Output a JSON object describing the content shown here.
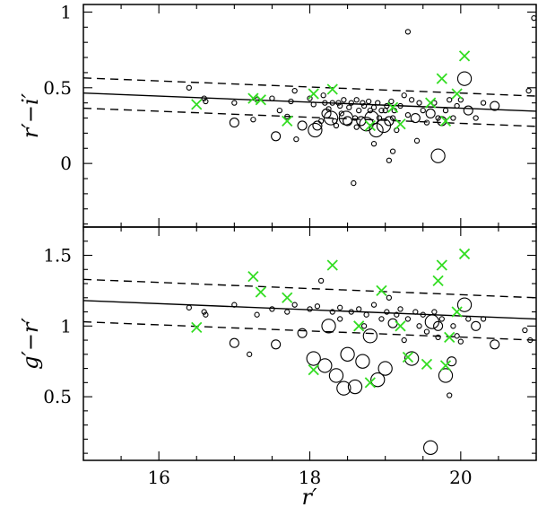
{
  "chart_data": [
    {
      "type": "scatter",
      "panel": "top",
      "xlabel": "",
      "ylabel": "r′−i′",
      "xlim": [
        15.0,
        21.0
      ],
      "ylim": [
        -0.42,
        1.05
      ],
      "yticks": [
        0,
        0.5,
        1
      ],
      "yticklabels": [
        "0",
        "0.5",
        "1"
      ],
      "fit_line": {
        "x": [
          15.0,
          21.0
        ],
        "y": [
          0.465,
          0.345
        ]
      },
      "dashed_bounds": [
        {
          "x": [
            15.0,
            21.0
          ],
          "y": [
            0.565,
            0.445
          ]
        },
        {
          "x": [
            15.0,
            21.0
          ],
          "y": [
            0.365,
            0.245
          ]
        }
      ],
      "circles": [
        {
          "x": 16.4,
          "y": 0.5,
          "s": 1
        },
        {
          "x": 16.6,
          "y": 0.43,
          "s": 1
        },
        {
          "x": 16.62,
          "y": 0.41,
          "s": 1
        },
        {
          "x": 17.0,
          "y": 0.27,
          "s": 2
        },
        {
          "x": 17.0,
          "y": 0.4,
          "s": 1
        },
        {
          "x": 17.25,
          "y": 0.29,
          "s": 1
        },
        {
          "x": 17.3,
          "y": 0.42,
          "s": 1
        },
        {
          "x": 17.5,
          "y": 0.43,
          "s": 1
        },
        {
          "x": 17.55,
          "y": 0.18,
          "s": 2
        },
        {
          "x": 17.6,
          "y": 0.35,
          "s": 1
        },
        {
          "x": 17.7,
          "y": 0.31,
          "s": 1
        },
        {
          "x": 17.75,
          "y": 0.41,
          "s": 1
        },
        {
          "x": 17.8,
          "y": 0.48,
          "s": 1
        },
        {
          "x": 17.82,
          "y": 0.16,
          "s": 1
        },
        {
          "x": 17.9,
          "y": 0.25,
          "s": 2
        },
        {
          "x": 18.0,
          "y": 0.43,
          "s": 1
        },
        {
          "x": 18.05,
          "y": 0.39,
          "s": 1
        },
        {
          "x": 18.07,
          "y": 0.22,
          "s": 3
        },
        {
          "x": 18.1,
          "y": 0.25,
          "s": 2
        },
        {
          "x": 18.15,
          "y": 0.28,
          "s": 1
        },
        {
          "x": 18.18,
          "y": 0.45,
          "s": 1
        },
        {
          "x": 18.2,
          "y": 0.4,
          "s": 1
        },
        {
          "x": 18.22,
          "y": 0.33,
          "s": 2
        },
        {
          "x": 18.25,
          "y": 0.36,
          "s": 1
        },
        {
          "x": 18.28,
          "y": 0.3,
          "s": 3
        },
        {
          "x": 18.3,
          "y": 0.4,
          "s": 1
        },
        {
          "x": 18.33,
          "y": 0.28,
          "s": 1
        },
        {
          "x": 18.35,
          "y": 0.25,
          "s": 1
        },
        {
          "x": 18.38,
          "y": 0.4,
          "s": 1
        },
        {
          "x": 18.4,
          "y": 0.38,
          "s": 1
        },
        {
          "x": 18.42,
          "y": 0.33,
          "s": 1
        },
        {
          "x": 18.45,
          "y": 0.42,
          "s": 1
        },
        {
          "x": 18.48,
          "y": 0.3,
          "s": 3
        },
        {
          "x": 18.5,
          "y": 0.28,
          "s": 2
        },
        {
          "x": 18.52,
          "y": 0.37,
          "s": 1
        },
        {
          "x": 18.55,
          "y": 0.4,
          "s": 1
        },
        {
          "x": 18.58,
          "y": -0.13,
          "s": 1
        },
        {
          "x": 18.6,
          "y": 0.3,
          "s": 1
        },
        {
          "x": 18.62,
          "y": 0.42,
          "s": 1
        },
        {
          "x": 18.65,
          "y": 0.35,
          "s": 1
        },
        {
          "x": 18.68,
          "y": 0.28,
          "s": 2
        },
        {
          "x": 18.7,
          "y": 0.4,
          "s": 1
        },
        {
          "x": 18.72,
          "y": 0.38,
          "s": 1
        },
        {
          "x": 18.75,
          "y": 0.26,
          "s": 3
        },
        {
          "x": 18.78,
          "y": 0.41,
          "s": 1
        },
        {
          "x": 18.8,
          "y": 0.35,
          "s": 1
        },
        {
          "x": 18.82,
          "y": 0.3,
          "s": 3
        },
        {
          "x": 18.85,
          "y": 0.37,
          "s": 1
        },
        {
          "x": 18.88,
          "y": 0.22,
          "s": 3
        },
        {
          "x": 18.9,
          "y": 0.4,
          "s": 1
        },
        {
          "x": 18.92,
          "y": 0.3,
          "s": 1
        },
        {
          "x": 18.95,
          "y": 0.35,
          "s": 1
        },
        {
          "x": 18.98,
          "y": 0.25,
          "s": 3
        },
        {
          "x": 19.0,
          "y": 0.35,
          "s": 1
        },
        {
          "x": 19.02,
          "y": 0.38,
          "s": 1
        },
        {
          "x": 19.05,
          "y": 0.28,
          "s": 2
        },
        {
          "x": 19.08,
          "y": 0.41,
          "s": 1
        },
        {
          "x": 19.1,
          "y": 0.3,
          "s": 1
        },
        {
          "x": 19.12,
          "y": 0.35,
          "s": 1
        },
        {
          "x": 19.15,
          "y": 0.22,
          "s": 1
        },
        {
          "x": 19.2,
          "y": 0.38,
          "s": 1
        },
        {
          "x": 19.25,
          "y": 0.45,
          "s": 1
        },
        {
          "x": 19.3,
          "y": 0.87,
          "s": 1
        },
        {
          "x": 19.3,
          "y": 0.32,
          "s": 1
        },
        {
          "x": 19.35,
          "y": 0.42,
          "s": 1
        },
        {
          "x": 19.4,
          "y": 0.3,
          "s": 2
        },
        {
          "x": 19.42,
          "y": 0.15,
          "s": 1
        },
        {
          "x": 19.45,
          "y": 0.4,
          "s": 1
        },
        {
          "x": 19.5,
          "y": 0.35,
          "s": 1
        },
        {
          "x": 19.55,
          "y": 0.27,
          "s": 1
        },
        {
          "x": 19.6,
          "y": 0.33,
          "s": 2
        },
        {
          "x": 19.65,
          "y": 0.4,
          "s": 1
        },
        {
          "x": 19.7,
          "y": 0.3,
          "s": 1
        },
        {
          "x": 19.75,
          "y": 0.28,
          "s": 2
        },
        {
          "x": 19.8,
          "y": 0.35,
          "s": 1
        },
        {
          "x": 19.85,
          "y": 0.42,
          "s": 1
        },
        {
          "x": 19.9,
          "y": 0.3,
          "s": 1
        },
        {
          "x": 19.95,
          "y": 0.38,
          "s": 1
        },
        {
          "x": 20.0,
          "y": 0.42,
          "s": 1
        },
        {
          "x": 20.05,
          "y": 0.56,
          "s": 3
        },
        {
          "x": 20.1,
          "y": 0.35,
          "s": 2
        },
        {
          "x": 20.2,
          "y": 0.3,
          "s": 1
        },
        {
          "x": 20.3,
          "y": 0.4,
          "s": 1
        },
        {
          "x": 20.45,
          "y": 0.38,
          "s": 2
        },
        {
          "x": 20.9,
          "y": 0.48,
          "s": 1
        },
        {
          "x": 20.97,
          "y": 0.96,
          "s": 1
        },
        {
          "x": 18.62,
          "y": 0.24,
          "s": 1
        },
        {
          "x": 18.85,
          "y": 0.13,
          "s": 1
        },
        {
          "x": 19.7,
          "y": 0.05,
          "s": 3
        },
        {
          "x": 19.05,
          "y": 0.02,
          "s": 1
        },
        {
          "x": 19.1,
          "y": 0.08,
          "s": 1
        }
      ],
      "crosses": [
        {
          "x": 16.5,
          "y": 0.39
        },
        {
          "x": 17.25,
          "y": 0.43
        },
        {
          "x": 17.35,
          "y": 0.42
        },
        {
          "x": 17.7,
          "y": 0.28
        },
        {
          "x": 18.05,
          "y": 0.46
        },
        {
          "x": 18.3,
          "y": 0.49
        },
        {
          "x": 18.8,
          "y": 0.25
        },
        {
          "x": 19.1,
          "y": 0.37
        },
        {
          "x": 19.2,
          "y": 0.26
        },
        {
          "x": 19.6,
          "y": 0.4
        },
        {
          "x": 19.75,
          "y": 0.56
        },
        {
          "x": 19.95,
          "y": 0.46
        },
        {
          "x": 20.05,
          "y": 0.71
        },
        {
          "x": 19.8,
          "y": 0.28
        }
      ]
    },
    {
      "type": "scatter",
      "panel": "bottom",
      "xlabel": "r′",
      "ylabel": "g′−r′",
      "xlim": [
        15.0,
        21.0
      ],
      "ylim": [
        0.05,
        1.7
      ],
      "xticks": [
        16,
        18,
        20
      ],
      "xticklabels": [
        "16",
        "18",
        "20"
      ],
      "yticks": [
        0.5,
        1,
        1.5
      ],
      "yticklabels": [
        "0.5",
        "1",
        "1.5"
      ],
      "fit_line": {
        "x": [
          15.0,
          21.0
        ],
        "y": [
          1.18,
          1.05
        ]
      },
      "dashed_bounds": [
        {
          "x": [
            15.0,
            21.0
          ],
          "y": [
            1.33,
            1.2
          ]
        },
        {
          "x": [
            15.0,
            21.0
          ],
          "y": [
            1.03,
            0.9
          ]
        }
      ],
      "circles": [
        {
          "x": 16.4,
          "y": 1.13,
          "s": 1
        },
        {
          "x": 16.6,
          "y": 1.1,
          "s": 1
        },
        {
          "x": 16.62,
          "y": 1.08,
          "s": 1
        },
        {
          "x": 17.0,
          "y": 0.88,
          "s": 2
        },
        {
          "x": 17.0,
          "y": 1.15,
          "s": 1
        },
        {
          "x": 17.2,
          "y": 0.8,
          "s": 1
        },
        {
          "x": 17.3,
          "y": 1.08,
          "s": 1
        },
        {
          "x": 17.5,
          "y": 1.12,
          "s": 1
        },
        {
          "x": 17.55,
          "y": 0.87,
          "s": 2
        },
        {
          "x": 17.7,
          "y": 1.1,
          "s": 1
        },
        {
          "x": 17.8,
          "y": 1.15,
          "s": 1
        },
        {
          "x": 17.9,
          "y": 0.95,
          "s": 2
        },
        {
          "x": 18.0,
          "y": 1.12,
          "s": 1
        },
        {
          "x": 18.05,
          "y": 0.77,
          "s": 3
        },
        {
          "x": 18.1,
          "y": 1.14,
          "s": 1
        },
        {
          "x": 18.15,
          "y": 1.32,
          "s": 1
        },
        {
          "x": 18.2,
          "y": 0.72,
          "s": 3
        },
        {
          "x": 18.25,
          "y": 1.0,
          "s": 3
        },
        {
          "x": 18.3,
          "y": 1.1,
          "s": 1
        },
        {
          "x": 18.35,
          "y": 0.65,
          "s": 3
        },
        {
          "x": 18.4,
          "y": 1.05,
          "s": 1
        },
        {
          "x": 18.45,
          "y": 0.56,
          "s": 3
        },
        {
          "x": 18.5,
          "y": 0.8,
          "s": 3
        },
        {
          "x": 18.55,
          "y": 1.1,
          "s": 1
        },
        {
          "x": 18.6,
          "y": 0.57,
          "s": 3
        },
        {
          "x": 18.65,
          "y": 1.12,
          "s": 1
        },
        {
          "x": 18.7,
          "y": 0.75,
          "s": 3
        },
        {
          "x": 18.72,
          "y": 1.0,
          "s": 1
        },
        {
          "x": 18.75,
          "y": 1.08,
          "s": 1
        },
        {
          "x": 18.8,
          "y": 0.93,
          "s": 3
        },
        {
          "x": 18.85,
          "y": 1.15,
          "s": 1
        },
        {
          "x": 18.9,
          "y": 0.62,
          "s": 3
        },
        {
          "x": 18.95,
          "y": 1.05,
          "s": 1
        },
        {
          "x": 19.0,
          "y": 0.7,
          "s": 3
        },
        {
          "x": 19.02,
          "y": 1.1,
          "s": 1
        },
        {
          "x": 19.05,
          "y": 1.2,
          "s": 1
        },
        {
          "x": 19.1,
          "y": 1.02,
          "s": 2
        },
        {
          "x": 19.15,
          "y": 1.08,
          "s": 1
        },
        {
          "x": 19.2,
          "y": 1.12,
          "s": 1
        },
        {
          "x": 19.25,
          "y": 0.9,
          "s": 1
        },
        {
          "x": 19.3,
          "y": 1.05,
          "s": 1
        },
        {
          "x": 19.35,
          "y": 0.77,
          "s": 3
        },
        {
          "x": 19.4,
          "y": 1.1,
          "s": 1
        },
        {
          "x": 19.45,
          "y": 1.0,
          "s": 1
        },
        {
          "x": 19.5,
          "y": 1.08,
          "s": 1
        },
        {
          "x": 19.55,
          "y": 0.96,
          "s": 1
        },
        {
          "x": 19.6,
          "y": 0.14,
          "s": 3
        },
        {
          "x": 19.62,
          "y": 1.03,
          "s": 3
        },
        {
          "x": 19.65,
          "y": 1.1,
          "s": 1
        },
        {
          "x": 19.7,
          "y": 0.92,
          "s": 1
        },
        {
          "x": 19.75,
          "y": 1.05,
          "s": 1
        },
        {
          "x": 19.8,
          "y": 0.65,
          "s": 3
        },
        {
          "x": 19.85,
          "y": 0.51,
          "s": 1
        },
        {
          "x": 19.88,
          "y": 0.75,
          "s": 2
        },
        {
          "x": 19.9,
          "y": 1.0,
          "s": 1
        },
        {
          "x": 19.95,
          "y": 0.93,
          "s": 1
        },
        {
          "x": 20.0,
          "y": 0.89,
          "s": 1
        },
        {
          "x": 20.05,
          "y": 1.15,
          "s": 3
        },
        {
          "x": 20.1,
          "y": 1.05,
          "s": 1
        },
        {
          "x": 20.2,
          "y": 1.0,
          "s": 2
        },
        {
          "x": 20.3,
          "y": 1.05,
          "s": 1
        },
        {
          "x": 20.45,
          "y": 0.87,
          "s": 2
        },
        {
          "x": 20.85,
          "y": 0.97,
          "s": 1
        },
        {
          "x": 20.92,
          "y": 0.9,
          "s": 1
        },
        {
          "x": 19.7,
          "y": 1.0,
          "s": 2
        },
        {
          "x": 18.4,
          "y": 1.13,
          "s": 1
        }
      ],
      "crosses": [
        {
          "x": 16.5,
          "y": 0.99
        },
        {
          "x": 17.25,
          "y": 1.35
        },
        {
          "x": 17.35,
          "y": 1.24
        },
        {
          "x": 17.7,
          "y": 1.2
        },
        {
          "x": 18.05,
          "y": 0.69
        },
        {
          "x": 18.3,
          "y": 1.43
        },
        {
          "x": 18.65,
          "y": 1.0
        },
        {
          "x": 18.8,
          "y": 0.6
        },
        {
          "x": 18.95,
          "y": 1.25
        },
        {
          "x": 19.2,
          "y": 1.0
        },
        {
          "x": 19.3,
          "y": 0.78
        },
        {
          "x": 19.55,
          "y": 0.73
        },
        {
          "x": 19.7,
          "y": 1.32
        },
        {
          "x": 19.75,
          "y": 1.43
        },
        {
          "x": 19.8,
          "y": 0.72
        },
        {
          "x": 19.95,
          "y": 1.1
        },
        {
          "x": 20.05,
          "y": 1.51
        },
        {
          "x": 19.85,
          "y": 0.92
        }
      ]
    }
  ]
}
